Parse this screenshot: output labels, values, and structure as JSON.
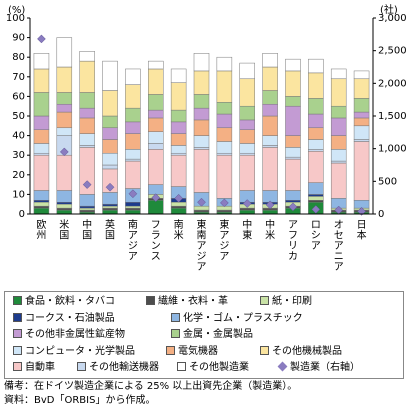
{
  "chart_data": {
    "type": "bar",
    "stacked": true,
    "left_axis_unit": "(%)",
    "right_axis_unit": "(社)",
    "ylim": [
      0,
      100
    ],
    "y2lim": [
      0,
      3000
    ],
    "yticks": [
      "0",
      "10",
      "20",
      "30",
      "40",
      "50",
      "60",
      "70",
      "80",
      "90",
      "100"
    ],
    "y2ticks": [
      "0",
      "500",
      "1,000",
      "1,500",
      "2,000",
      "2,500",
      "3,000"
    ],
    "categories": [
      "欧州",
      "米国",
      "中国",
      "英国",
      "南アジア",
      "フランス",
      "南米",
      "東南アジア",
      "東アジア",
      "中東",
      "中米",
      "アフリカ",
      "ロシア",
      "オセアニア",
      "日本"
    ],
    "series": [
      {
        "name": "食品・飲料・タバコ",
        "color": "#1f8a3b",
        "values": [
          3,
          2,
          1,
          2,
          2,
          7,
          3,
          1,
          1,
          2,
          2,
          3,
          6,
          1,
          1
        ]
      },
      {
        "name": "繊維・衣料・革",
        "color": "#4d4d4d",
        "values": [
          1,
          1,
          1,
          1,
          1,
          1,
          1,
          1,
          1,
          1,
          1,
          1,
          1,
          1,
          1
        ]
      },
      {
        "name": "紙・印刷",
        "color": "#c9e2a6",
        "values": [
          2,
          2,
          1,
          1,
          1,
          2,
          2,
          2,
          2,
          2,
          2,
          2,
          2,
          1,
          1
        ]
      },
      {
        "name": "コークス・石油製品",
        "color": "#1d3b8c",
        "values": [
          1,
          1,
          1,
          1,
          2,
          0,
          2,
          0,
          0,
          1,
          1,
          1,
          1,
          0,
          0
        ]
      },
      {
        "name": "化学・ゴム・プラスチック",
        "color": "#8eb6e2",
        "values": [
          5,
          6,
          6,
          6,
          7,
          5,
          6,
          7,
          4,
          6,
          6,
          5,
          6,
          5,
          4
        ]
      },
      {
        "name": "自動車",
        "color": "#f7c8c8",
        "values": [
          18,
          18,
          24,
          12,
          14,
          18,
          16,
          22,
          22,
          18,
          22,
          16,
          16,
          18,
          30
        ]
      },
      {
        "name": "その他輸送機器",
        "color": "#c8d9ef",
        "values": [
          1,
          10,
          1,
          2,
          1,
          3,
          1,
          1,
          1,
          1,
          1,
          1,
          1,
          1,
          1
        ]
      },
      {
        "name": "コンピュータ・光学製品",
        "color": "#d0e6f7",
        "values": [
          5,
          4,
          6,
          6,
          5,
          6,
          4,
          6,
          6,
          5,
          5,
          5,
          5,
          6,
          7
        ]
      },
      {
        "name": "電気機器",
        "color": "#f4b084",
        "values": [
          7,
          8,
          8,
          7,
          8,
          7,
          6,
          8,
          7,
          7,
          10,
          6,
          6,
          7,
          4
        ]
      },
      {
        "name": "その他非金属性鉱産物",
        "color": "#c39bd3",
        "values": [
          7,
          4,
          5,
          6,
          6,
          4,
          6,
          6,
          7,
          5,
          6,
          15,
          7,
          9,
          3
        ]
      },
      {
        "name": "金属・金属製品",
        "color": "#a9d18e",
        "values": [
          12,
          6,
          8,
          6,
          7,
          8,
          6,
          7,
          6,
          7,
          7,
          5,
          8,
          6,
          7
        ]
      },
      {
        "name": "その他機械製品",
        "color": "#fbe5a0",
        "values": [
          12,
          13,
          16,
          13,
          12,
          13,
          14,
          12,
          16,
          14,
          12,
          13,
          13,
          14,
          10
        ]
      },
      {
        "name": "その他製造業",
        "color": "#ffffff",
        "values": [
          8,
          15,
          5,
          15,
          8,
          4,
          7,
          9,
          7,
          8,
          7,
          6,
          7,
          5,
          4
        ]
      }
    ],
    "line_series": {
      "name": "製造業（右軸）",
      "axis": "right",
      "color": "#8a7cc0",
      "values": [
        2680,
        950,
        450,
        410,
        310,
        250,
        240,
        180,
        170,
        160,
        140,
        110,
        70,
        60,
        40
      ]
    }
  },
  "legend_rows": [
    [
      {
        "label": "食品・飲料・タバコ",
        "color": "#1f8a3b"
      },
      {
        "label": "繊維・衣料・革",
        "color": "#4d4d4d"
      },
      {
        "label": "紙・印刷",
        "color": "#c9e2a6"
      }
    ],
    [
      {
        "label": "コークス・石油製品",
        "color": "#1d3b8c"
      },
      {
        "label": "化学・ゴム・プラスチック",
        "color": "#8eb6e2"
      }
    ],
    [
      {
        "label": "その他非金属性鉱産物",
        "color": "#c39bd3"
      },
      {
        "label": "金属・金属製品",
        "color": "#a9d18e"
      }
    ],
    [
      {
        "label": "コンピュータ・光学製品",
        "color": "#d0e6f7"
      },
      {
        "label": "電気機器",
        "color": "#f4b084"
      },
      {
        "label": "その他機械製品",
        "color": "#fbe5a0"
      }
    ],
    [
      {
        "label": "自動車",
        "color": "#f7c8c8"
      },
      {
        "label": "その他輸送機器",
        "color": "#c8d9ef"
      },
      {
        "label": "その他製造業",
        "color": "#ffffff"
      },
      {
        "label": "製造業（右軸）",
        "marker": "diamond"
      }
    ]
  ],
  "notes": {
    "line1": "備考：在ドイツ製造企業による 25% 以上出資先企業（製造業）。",
    "line2": "資料：BvD「ORBIS」から作成。"
  }
}
